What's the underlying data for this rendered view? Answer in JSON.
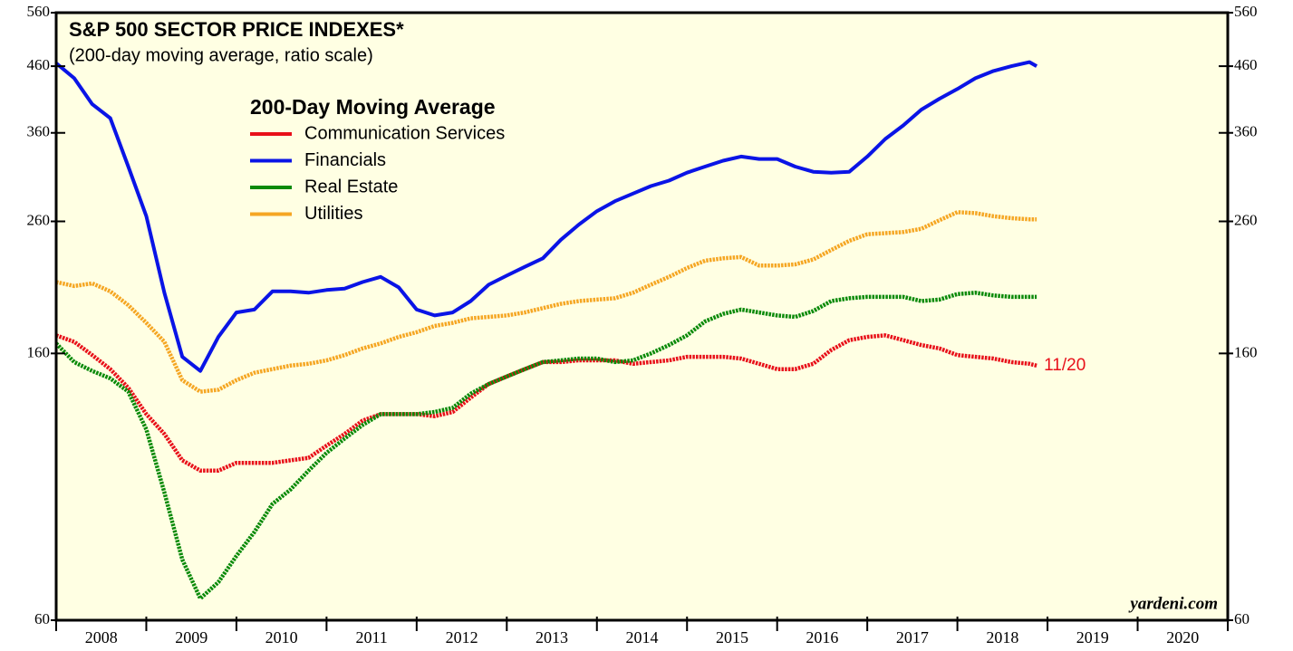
{
  "chart_data": {
    "type": "line",
    "title": "S&P 500 SECTOR PRICE INDEXES*",
    "subtitle": "(200-day moving average, ratio scale)",
    "legend_title": "200-Day Moving Average",
    "annotation": "11/20",
    "credit": "yardeni.com",
    "yscale": "log",
    "ylim": [
      60,
      560
    ],
    "yticks": [
      60,
      160,
      260,
      360,
      460,
      560
    ],
    "xlim": [
      2008,
      2021
    ],
    "xticks": [
      2008,
      2009,
      2010,
      2011,
      2012,
      2013,
      2014,
      2015,
      2016,
      2017,
      2018,
      2019,
      2020,
      2021
    ],
    "categories": [
      "2008",
      "2009",
      "2010",
      "2011",
      "2012",
      "2013",
      "2014",
      "2015",
      "2016",
      "2017",
      "2018",
      "2019",
      "2020"
    ],
    "x": [
      2008.0,
      2008.2,
      2008.4,
      2008.6,
      2008.8,
      2009.0,
      2009.2,
      2009.4,
      2009.6,
      2009.8,
      2010.0,
      2010.2,
      2010.4,
      2010.6,
      2010.8,
      2011.0,
      2011.2,
      2011.4,
      2011.6,
      2011.8,
      2012.0,
      2012.2,
      2012.4,
      2012.6,
      2012.8,
      2013.0,
      2013.2,
      2013.4,
      2013.6,
      2013.8,
      2014.0,
      2014.2,
      2014.4,
      2014.6,
      2014.8,
      2015.0,
      2015.2,
      2015.4,
      2015.6,
      2015.8,
      2016.0,
      2016.2,
      2016.4,
      2016.6,
      2016.8,
      2017.0,
      2017.2,
      2017.4,
      2017.6,
      2017.8,
      2018.0,
      2018.2,
      2018.4,
      2018.6,
      2018.8,
      2018.88
    ],
    "series": [
      {
        "name": "Communication Services",
        "color": "#e8101a",
        "dashed": true,
        "values": [
          171,
          167,
          159,
          151,
          141,
          128,
          119,
          108,
          104,
          104,
          107,
          107,
          107,
          108,
          109,
          114,
          119,
          125,
          128,
          128,
          128,
          127,
          129,
          136,
          143,
          147,
          151,
          155,
          155,
          156,
          156,
          156,
          154,
          155,
          156,
          158,
          158,
          158,
          157,
          154,
          151,
          151,
          154,
          162,
          168,
          170,
          171,
          168,
          165,
          163,
          159,
          158,
          157,
          155,
          154,
          153
        ]
      },
      {
        "name": "Financials",
        "color": "#0a14e6",
        "dashed": false,
        "values": [
          465,
          440,
          400,
          380,
          318,
          265,
          200,
          158,
          150,
          170,
          186,
          188,
          201,
          201,
          200,
          202,
          203,
          208,
          212,
          204,
          188,
          184,
          186,
          194,
          206,
          213,
          220,
          227,
          243,
          257,
          270,
          280,
          288,
          296,
          302,
          311,
          318,
          325,
          330,
          327,
          327,
          318,
          312,
          311,
          312,
          330,
          352,
          370,
          392,
          408,
          423,
          440,
          452,
          460,
          467,
          460
        ]
      },
      {
        "name": "Real Estate",
        "color": "#0a8a0a",
        "dashed": true,
        "values": [
          166,
          155,
          150,
          146,
          139,
          121,
          96,
          75,
          65,
          69,
          76,
          83,
          92,
          97,
          104,
          111,
          117,
          123,
          128,
          128,
          128,
          129,
          131,
          138,
          143,
          147,
          151,
          155,
          156,
          157,
          157,
          155,
          156,
          160,
          165,
          171,
          180,
          185,
          188,
          186,
          184,
          183,
          187,
          194,
          196,
          197,
          197,
          197,
          194,
          195,
          199,
          200,
          198,
          197,
          197,
          197
        ]
      },
      {
        "name": "Utilities",
        "color": "#f5a623",
        "dashed": true,
        "values": [
          208,
          205,
          207,
          201,
          191,
          179,
          167,
          145,
          139,
          140,
          145,
          149,
          151,
          153,
          154,
          156,
          159,
          163,
          166,
          170,
          173,
          177,
          179,
          182,
          183,
          184,
          186,
          189,
          192,
          194,
          195,
          196,
          200,
          206,
          212,
          219,
          225,
          227,
          228,
          221,
          221,
          222,
          226,
          234,
          242,
          248,
          249,
          250,
          253,
          261,
          269,
          268,
          265,
          263,
          262,
          262
        ]
      }
    ]
  }
}
